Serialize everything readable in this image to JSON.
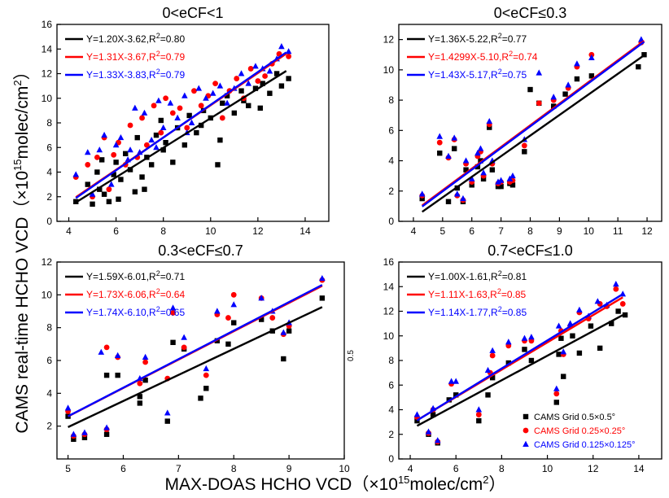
{
  "figure": {
    "ylabel": "CAMS real-time HCHO VCD（×10",
    "ylabel_sup": "15",
    "ylabel_rest": "molec/cm",
    "ylabel_sup2": "2",
    "ylabel_end": "）",
    "xlabel": "MAX-DOAS HCHO VCD（×10",
    "xlabel_sup": "15",
    "xlabel_rest": "molec/cm",
    "xlabel_sup2": "2",
    "xlabel_end": "）",
    "stray_label": "0.5"
  },
  "legend": {
    "entries": [
      {
        "label": "CAMS Grid  0.5×0.5°",
        "color": "#000000",
        "marker": "square"
      },
      {
        "label": "CAMS Grid  0.25×0.25°",
        "color": "#ff0000",
        "marker": "circle"
      },
      {
        "label": "CAMS Grid  0.125×0.125°",
        "color": "#0000ff",
        "marker": "triangle"
      }
    ]
  },
  "chart_data": [
    {
      "type": "scatter",
      "title": "0<eCF<1",
      "xlim": [
        3.5,
        15
      ],
      "ylim": [
        0,
        16
      ],
      "xticks": [
        4,
        6,
        8,
        10,
        12,
        14
      ],
      "yticks": [
        0,
        2,
        4,
        6,
        8,
        10,
        12,
        14,
        16
      ],
      "fits": [
        {
          "color": "#000000",
          "text": "Y=1.20X-3.62,R",
          "sup": "2",
          "tail": "=0.80",
          "slope": 1.2,
          "intercept": -3.62,
          "xrange": [
            4.3,
            13.2
          ]
        },
        {
          "color": "#ff0000",
          "text": "Y=1.31X-3.67,R",
          "sup": "2",
          "tail": "=0.79",
          "slope": 1.31,
          "intercept": -3.67,
          "xrange": [
            4.3,
            13.2
          ]
        },
        {
          "color": "#0000ff",
          "text": "Y=1.33X-3.83,R",
          "sup": "2",
          "tail": "=0.79",
          "slope": 1.33,
          "intercept": -3.83,
          "xrange": [
            4.3,
            13.2
          ]
        }
      ],
      "series": [
        {
          "name": "CAMS Grid  0.5×0.5°",
          "marker": "square",
          "color": "#000000",
          "x": [
            4.3,
            4.8,
            5.0,
            5.2,
            5.4,
            5.5,
            5.7,
            5.9,
            6.0,
            6.2,
            6.4,
            6.6,
            6.8,
            6.9,
            7.1,
            7.3,
            7.5,
            7.7,
            7.9,
            8.1,
            8.4,
            8.6,
            8.9,
            9.1,
            9.4,
            9.7,
            10.0,
            10.3,
            10.5,
            10.7,
            11.0,
            11.3,
            11.6,
            11.9,
            12.2,
            12.5,
            12.8,
            13.0,
            13.3,
            5.3,
            6.1,
            7.2,
            8.0,
            9.6,
            10.4,
            11.4,
            12.1
          ],
          "y": [
            1.6,
            3.0,
            1.4,
            4.0,
            5.0,
            2.2,
            1.6,
            3.8,
            4.8,
            3.4,
            5.5,
            4.2,
            2.4,
            6.8,
            3.6,
            5.2,
            4.6,
            7.0,
            8.2,
            6.4,
            4.8,
            7.6,
            6.2,
            8.6,
            7.2,
            9.0,
            8.4,
            4.6,
            9.6,
            10.2,
            8.8,
            10.6,
            9.4,
            10.8,
            11.2,
            10.4,
            12.0,
            11.0,
            11.6,
            2.6,
            1.8,
            2.6,
            5.8,
            7.8,
            6.6,
            9.8,
            9.2
          ]
        },
        {
          "name": "CAMS Grid  0.25×0.25°",
          "marker": "circle",
          "color": "#ff0000",
          "x": [
            4.3,
            4.8,
            5.0,
            5.2,
            5.5,
            5.7,
            5.9,
            6.1,
            6.4,
            6.6,
            6.9,
            7.1,
            7.3,
            7.6,
            7.9,
            8.1,
            8.4,
            8.7,
            9.0,
            9.3,
            9.6,
            9.9,
            10.2,
            10.5,
            10.8,
            11.1,
            11.4,
            11.7,
            12.0,
            12.3,
            12.6,
            12.9,
            13.3
          ],
          "y": [
            3.6,
            4.6,
            2.0,
            5.2,
            6.8,
            2.6,
            5.4,
            6.4,
            4.6,
            7.8,
            5.2,
            8.4,
            6.2,
            9.4,
            7.2,
            10.0,
            8.8,
            9.2,
            7.6,
            10.6,
            9.4,
            10.2,
            11.2,
            8.4,
            10.6,
            11.6,
            10.0,
            12.4,
            11.4,
            11.8,
            12.8,
            13.6,
            13.4
          ]
        },
        {
          "name": "CAMS Grid  0.125×0.125°",
          "marker": "triangle",
          "color": "#0000ff",
          "x": [
            4.3,
            4.8,
            5.0,
            5.3,
            5.5,
            5.8,
            6.0,
            6.2,
            6.5,
            6.8,
            7.0,
            7.2,
            7.5,
            7.8,
            8.0,
            8.3,
            8.6,
            8.9,
            9.2,
            9.5,
            9.8,
            10.1,
            10.4,
            10.7,
            11.0,
            11.3,
            11.6,
            11.9,
            12.2,
            12.5,
            12.8,
            13.0,
            13.3,
            6.6,
            7.7,
            9.0
          ],
          "y": [
            3.8,
            5.6,
            2.2,
            5.8,
            7.0,
            3.0,
            6.2,
            6.8,
            5.0,
            9.2,
            5.6,
            8.8,
            6.6,
            9.8,
            7.6,
            9.6,
            8.4,
            10.2,
            8.0,
            10.8,
            10.0,
            10.4,
            11.0,
            9.6,
            10.8,
            12.0,
            11.2,
            12.6,
            12.4,
            12.2,
            13.2,
            14.2,
            13.8,
            5.8,
            6.0,
            7.2
          ]
        }
      ]
    },
    {
      "type": "scatter",
      "title": "0<eCF≤0.3",
      "xlim": [
        3.5,
        12.5
      ],
      "ylim": [
        0,
        13
      ],
      "xticks": [
        4,
        5,
        6,
        7,
        8,
        9,
        10,
        11,
        12
      ],
      "yticks": [
        0,
        2,
        4,
        6,
        8,
        10,
        12
      ],
      "fits": [
        {
          "color": "#000000",
          "text": "Y=1.36X-5.22,R",
          "sup": "2",
          "tail": "=0.77",
          "slope": 1.36,
          "intercept": -5.22,
          "xrange": [
            4.3,
            11.9
          ]
        },
        {
          "color": "#ff0000",
          "text": "Y=1.4299X-5.10,R",
          "sup": "2",
          "tail": "=0.74",
          "slope": 1.4299,
          "intercept": -5.1,
          "xrange": [
            4.3,
            11.9
          ]
        },
        {
          "color": "#0000ff",
          "text": "Y=1.43X-5.17,R",
          "sup": "2",
          "tail": "=0.75",
          "slope": 1.43,
          "intercept": -5.17,
          "xrange": [
            4.3,
            11.9
          ]
        }
      ],
      "series": [
        {
          "name": "CAMS Grid  0.5×0.5°",
          "marker": "square",
          "color": "#000000",
          "x": [
            4.3,
            4.9,
            5.2,
            5.4,
            5.5,
            5.7,
            5.8,
            6.0,
            6.2,
            6.3,
            6.4,
            6.6,
            6.7,
            6.9,
            7.0,
            7.3,
            7.4,
            7.8,
            8.0,
            8.3,
            8.8,
            9.2,
            9.6,
            10.1,
            11.7,
            11.9
          ],
          "y": [
            1.5,
            4.5,
            1.3,
            4.8,
            2.2,
            1.3,
            3.4,
            2.4,
            3.6,
            4.0,
            2.8,
            6.2,
            3.4,
            2.3,
            2.3,
            2.5,
            2.4,
            4.6,
            8.7,
            7.8,
            7.6,
            8.4,
            9.4,
            9.6,
            10.2,
            11.0
          ]
        },
        {
          "name": "CAMS Grid  0.25×0.25°",
          "marker": "circle",
          "color": "#ff0000",
          "x": [
            4.3,
            4.9,
            5.2,
            5.4,
            5.5,
            5.7,
            5.8,
            6.0,
            6.2,
            6.3,
            6.4,
            6.6,
            6.7,
            6.9,
            7.0,
            7.3,
            7.4,
            7.8,
            8.3,
            8.8,
            9.3,
            9.6,
            10.1,
            11.8
          ],
          "y": [
            1.7,
            5.2,
            4.2,
            5.4,
            1.7,
            1.4,
            3.8,
            2.6,
            4.3,
            4.6,
            3.0,
            6.4,
            3.8,
            2.5,
            2.6,
            2.6,
            2.7,
            5.0,
            7.8,
            8.0,
            8.8,
            10.2,
            11.0,
            11.8
          ]
        },
        {
          "name": "CAMS Grid  0.125×0.125°",
          "marker": "triangle",
          "color": "#0000ff",
          "x": [
            4.3,
            4.9,
            5.2,
            5.4,
            5.5,
            5.7,
            5.8,
            6.0,
            6.2,
            6.3,
            6.4,
            6.6,
            6.7,
            6.9,
            7.0,
            7.3,
            7.4,
            7.8,
            8.3,
            8.8,
            9.3,
            9.6,
            10.1,
            11.8
          ],
          "y": [
            1.8,
            5.6,
            4.3,
            5.5,
            1.8,
            1.5,
            4.0,
            2.8,
            4.5,
            4.8,
            3.2,
            6.6,
            4.0,
            2.6,
            2.7,
            2.8,
            3.0,
            5.4,
            9.8,
            8.2,
            9.0,
            10.4,
            10.8,
            12.0
          ]
        }
      ]
    },
    {
      "type": "scatter",
      "title": "0.3<eCF≤0.7",
      "xlim": [
        4.8,
        10
      ],
      "ylim": [
        0,
        12
      ],
      "xticks": [
        5,
        6,
        7,
        8,
        9,
        10
      ],
      "yticks": [
        2,
        4,
        6,
        8,
        10,
        12
      ],
      "fits": [
        {
          "color": "#000000",
          "text": "Y=1.59X-6.01,R",
          "sup": "2",
          "tail": "=0.71",
          "slope": 1.59,
          "intercept": -6.01,
          "xrange": [
            5.0,
            9.6
          ]
        },
        {
          "color": "#ff0000",
          "text": "Y=1.73X-6.06,R",
          "sup": "2",
          "tail": "=0.64",
          "slope": 1.73,
          "intercept": -6.06,
          "xrange": [
            5.0,
            9.6
          ]
        },
        {
          "color": "#0000ff",
          "text": "Y=1.74X-6.10,R",
          "sup": "2",
          "tail": "=0.65",
          "slope": 1.74,
          "intercept": -6.1,
          "xrange": [
            5.0,
            9.6
          ]
        }
      ],
      "series": [
        {
          "name": "CAMS Grid  0.5×0.5°",
          "marker": "square",
          "color": "#000000",
          "x": [
            5.0,
            5.1,
            5.3,
            5.7,
            5.7,
            5.9,
            6.3,
            6.3,
            6.4,
            6.8,
            6.9,
            7.1,
            7.4,
            7.5,
            7.7,
            7.9,
            8.0,
            8.5,
            8.7,
            8.9,
            9.0,
            9.6
          ],
          "y": [
            2.6,
            1.2,
            1.3,
            1.5,
            5.1,
            5.1,
            3.4,
            3.8,
            4.8,
            2.3,
            7.1,
            6.7,
            3.7,
            4.3,
            7.2,
            7.0,
            8.3,
            8.5,
            7.8,
            6.1,
            7.8,
            9.8
          ]
        },
        {
          "name": "CAMS Grid  0.25×0.25°",
          "marker": "circle",
          "color": "#ff0000",
          "x": [
            5.0,
            5.1,
            5.3,
            5.7,
            5.7,
            5.9,
            6.3,
            6.4,
            6.8,
            6.9,
            7.1,
            7.5,
            7.7,
            7.9,
            8.0,
            8.5,
            8.7,
            8.9,
            9.0,
            9.6
          ],
          "y": [
            2.9,
            1.4,
            1.5,
            1.8,
            6.8,
            6.2,
            4.6,
            5.9,
            4.9,
            8.9,
            6.8,
            5.1,
            8.8,
            8.6,
            10.0,
            9.8,
            8.6,
            7.6,
            8.1,
            10.9
          ]
        },
        {
          "name": "CAMS Grid  0.125×0.125°",
          "marker": "triangle",
          "color": "#0000ff",
          "x": [
            5.0,
            5.1,
            5.3,
            5.6,
            5.7,
            5.9,
            6.3,
            6.4,
            6.8,
            6.9,
            7.1,
            7.5,
            7.7,
            8.0,
            8.5,
            8.7,
            8.9,
            9.0,
            9.6
          ],
          "y": [
            3.1,
            1.5,
            1.6,
            6.5,
            1.9,
            6.3,
            4.9,
            6.2,
            2.8,
            9.2,
            7.4,
            5.5,
            9.0,
            9.4,
            9.8,
            9.0,
            7.7,
            8.3,
            11.0
          ]
        }
      ]
    },
    {
      "type": "scatter",
      "title": "0.7<eCF≤1.0",
      "xlim": [
        3.5,
        15
      ],
      "ylim": [
        0,
        16
      ],
      "xticks": [
        4,
        6,
        8,
        10,
        12,
        14
      ],
      "yticks": [
        0,
        2,
        4,
        6,
        8,
        10,
        12,
        14,
        16
      ],
      "fits": [
        {
          "color": "#000000",
          "text": "Y=1.00X-1.61,R",
          "sup": "2",
          "tail": "=0.81",
          "slope": 1.0,
          "intercept": -1.61,
          "xrange": [
            4.3,
            13.3
          ]
        },
        {
          "color": "#ff0000",
          "text": "Y=1.11X-1.63,R",
          "sup": "2",
          "tail": "=0.85",
          "slope": 1.11,
          "intercept": -1.63,
          "xrange": [
            4.3,
            13.3
          ]
        },
        {
          "color": "#0000ff",
          "text": "Y=1.14X-1.77,R",
          "sup": "2",
          "tail": "=0.85",
          "slope": 1.14,
          "intercept": -1.77,
          "xrange": [
            4.3,
            13.3
          ]
        }
      ],
      "series": [
        {
          "name": "CAMS Grid  0.5×0.5°",
          "marker": "square",
          "color": "#000000",
          "x": [
            4.3,
            4.8,
            5.0,
            5.2,
            5.7,
            6.0,
            7.0,
            7.4,
            7.6,
            8.3,
            9.0,
            9.3,
            10.4,
            10.5,
            10.6,
            10.7,
            11.1,
            11.4,
            11.9,
            12.3,
            12.8,
            13.1,
            13.4
          ],
          "y": [
            3.1,
            2.0,
            3.6,
            1.3,
            4.8,
            5.2,
            3.1,
            5.2,
            6.6,
            7.8,
            8.9,
            8.0,
            4.6,
            8.5,
            9.8,
            6.7,
            10.0,
            8.6,
            10.8,
            9.0,
            11.0,
            12.0,
            11.7
          ]
        },
        {
          "name": "CAMS Grid  0.25×0.25°",
          "marker": "circle",
          "color": "#ff0000",
          "x": [
            4.3,
            4.8,
            5.0,
            5.2,
            5.8,
            7.0,
            7.5,
            7.6,
            8.3,
            9.0,
            9.3,
            10.4,
            10.6,
            10.7,
            11.0,
            11.4,
            11.8,
            12.3,
            12.6,
            13.0,
            13.3
          ],
          "y": [
            3.4,
            2.1,
            4.0,
            1.4,
            6.1,
            3.6,
            7.0,
            8.4,
            9.2,
            9.6,
            9.6,
            5.3,
            10.4,
            8.5,
            10.8,
            11.9,
            11.4,
            12.6,
            12.4,
            13.8,
            12.6
          ]
        },
        {
          "name": "CAMS Grid  0.125×0.125°",
          "marker": "triangle",
          "color": "#0000ff",
          "x": [
            4.3,
            4.8,
            5.0,
            5.2,
            5.8,
            6.0,
            7.0,
            7.4,
            7.6,
            8.3,
            9.0,
            9.3,
            10.4,
            10.5,
            10.7,
            11.0,
            11.4,
            11.8,
            12.2,
            12.6,
            13.0,
            13.3
          ],
          "y": [
            3.6,
            2.2,
            4.1,
            1.5,
            6.3,
            6.3,
            4.0,
            7.2,
            8.8,
            9.5,
            9.8,
            9.9,
            5.7,
            10.8,
            8.7,
            11.0,
            12.1,
            11.6,
            12.8,
            12.5,
            14.2,
            13.4
          ]
        }
      ]
    }
  ]
}
